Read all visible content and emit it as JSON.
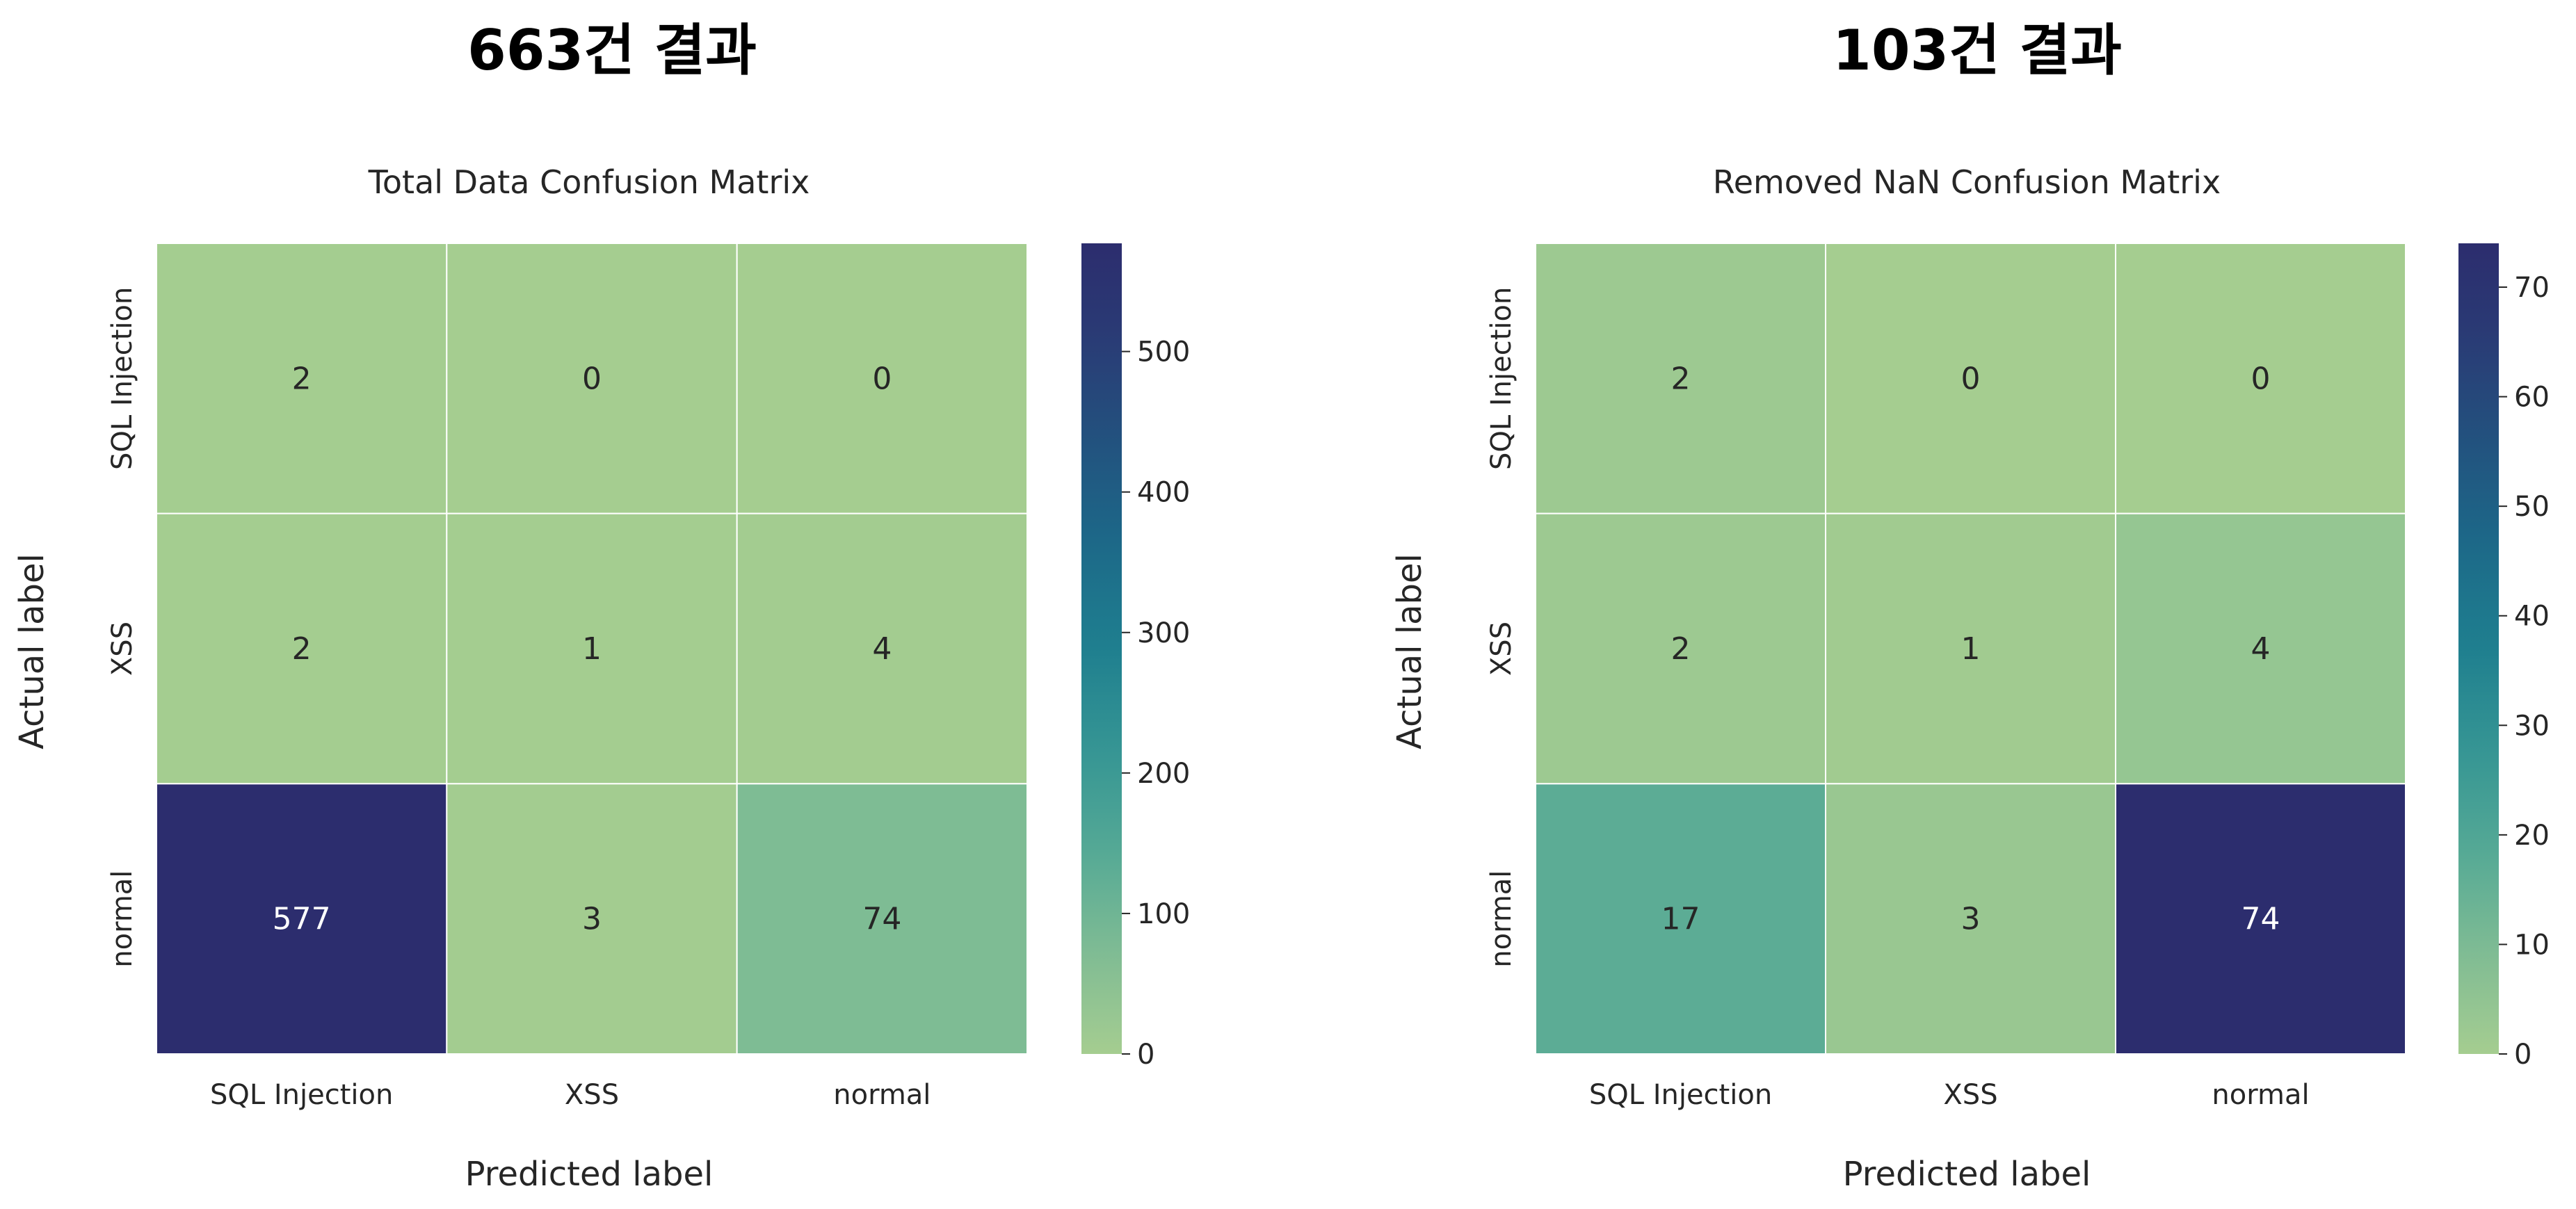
{
  "chart_data": [
    {
      "type": "heatmap",
      "suptitle": "663건 결과",
      "title": "Total Data Confusion Matrix",
      "xlabel": "Predicted label",
      "ylabel": "Actual label",
      "x_categories": [
        "SQL Injection",
        "XSS",
        "normal"
      ],
      "y_categories": [
        "SQL Injection",
        "XSS",
        "normal"
      ],
      "values": [
        [
          2,
          0,
          0
        ],
        [
          2,
          1,
          4
        ],
        [
          577,
          3,
          74
        ]
      ],
      "colorbar": {
        "min": 0,
        "max": 577,
        "ticks": [
          0,
          100,
          200,
          300,
          400,
          500
        ]
      },
      "colormap": "crest"
    },
    {
      "type": "heatmap",
      "suptitle": "103건 결과",
      "title": "Removed NaN Confusion Matrix",
      "xlabel": "Predicted label",
      "ylabel": "Actual label",
      "x_categories": [
        "SQL Injection",
        "XSS",
        "normal"
      ],
      "y_categories": [
        "SQL Injection",
        "XSS",
        "normal"
      ],
      "values": [
        [
          2,
          0,
          0
        ],
        [
          2,
          1,
          4
        ],
        [
          17,
          3,
          74
        ]
      ],
      "colorbar": {
        "min": 0,
        "max": 74,
        "ticks": [
          0,
          10,
          20,
          30,
          40,
          50,
          60,
          70
        ]
      },
      "colormap": "crest"
    }
  ],
  "colors": {
    "crest_stops": [
      "#a5cd90",
      "#7fbc94",
      "#55a995",
      "#359594",
      "#1f7f8f",
      "#1c6a89",
      "#22537f",
      "#2a3c76",
      "#2c2d6e"
    ],
    "text_dark": "#262626",
    "text_light": "#ffffff"
  }
}
